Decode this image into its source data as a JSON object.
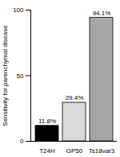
{
  "chart_data": {
    "type": "bar",
    "y_label": "Sensitivity for parenchymal disease",
    "categories": [
      "T24H",
      "GP50",
      "Ts18var3"
    ],
    "values": [
      11.8,
      29.4,
      94.1
    ],
    "value_labels": [
      "11.8%",
      "29.4%",
      "94.1%"
    ],
    "colors": [
      "#000000",
      "#d9d9d9",
      "#a6a6a6"
    ],
    "ylim": [
      0,
      100
    ],
    "yticks": [
      0,
      50,
      100
    ],
    "data_labels": true,
    "grid": false
  }
}
